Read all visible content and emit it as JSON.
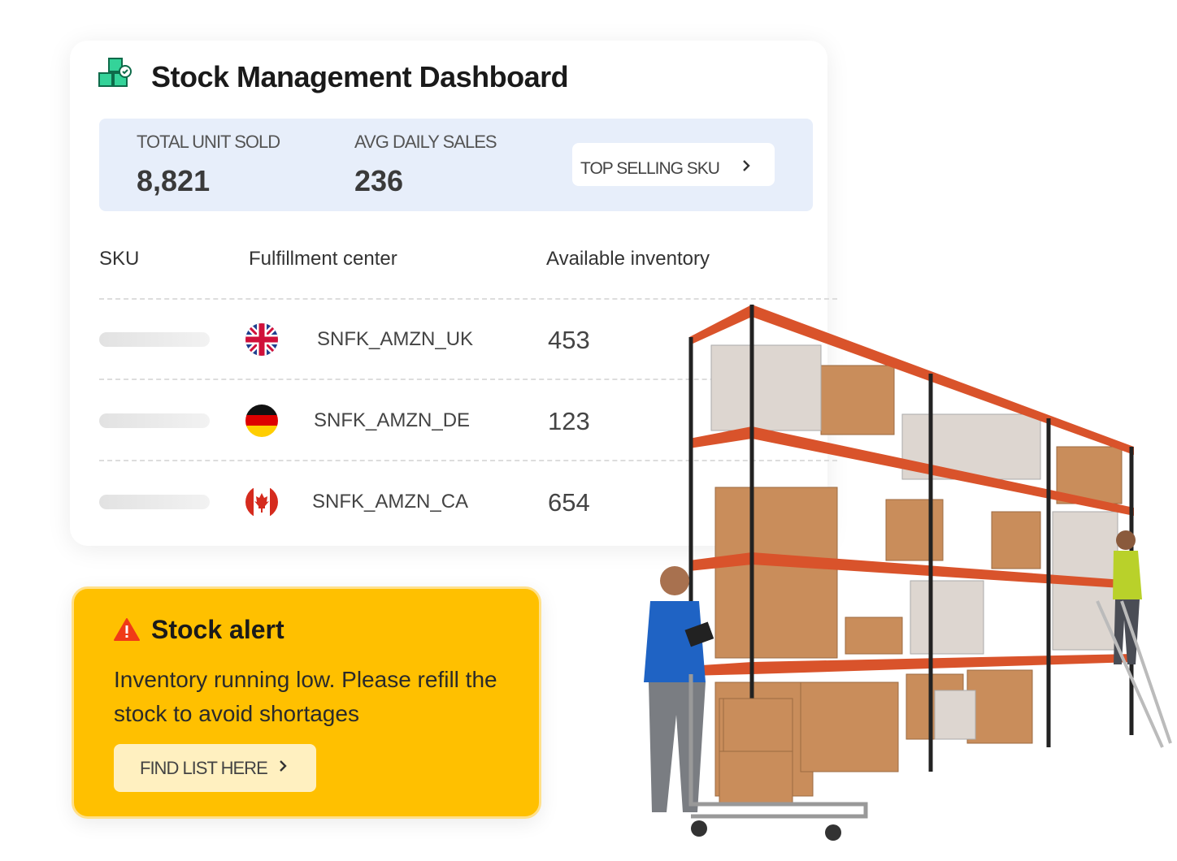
{
  "header": {
    "title": "Stock Management Dashboard"
  },
  "stats": [
    {
      "label": "TOTAL UNIT SOLD",
      "value": "8,821"
    },
    {
      "label": "AVG DAILY SALES",
      "value": "236"
    }
  ],
  "top_button": "TOP SELLING SKU",
  "table": {
    "columns": [
      "SKU",
      "Fulfillment center",
      "Available inventory"
    ],
    "rows": [
      {
        "center": "SNFK_AMZN_UK",
        "inventory": "453"
      },
      {
        "center": "SNFK_AMZN_DE",
        "inventory": "123"
      },
      {
        "center": "SNFK_AMZN_CA",
        "inventory": "654"
      }
    ]
  },
  "alert": {
    "title": "Stock alert",
    "message": "Inventory running low. Please refill the stock to avoid shortages",
    "button": "FIND LIST HERE"
  }
}
